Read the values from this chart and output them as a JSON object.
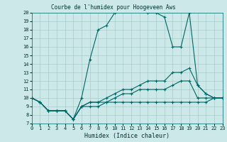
{
  "title": "Courbe de l'humidex pour Hoogeveen Aws",
  "xlabel": "Humidex (Indice chaleur)",
  "bg_color": "#cce8e8",
  "grid_color": "#aacccc",
  "line_color": "#006666",
  "xlim": [
    0,
    23
  ],
  "ylim": [
    7,
    20
  ],
  "lines": [
    {
      "x": [
        0,
        1,
        2,
        3,
        4,
        5,
        6,
        7,
        8,
        9,
        10,
        11,
        12,
        13,
        14,
        15,
        16,
        17,
        18,
        19,
        20,
        21,
        22,
        23
      ],
      "y": [
        10,
        9.5,
        8.5,
        8.5,
        8.5,
        7.5,
        10,
        14.5,
        18,
        18.5,
        20,
        20.5,
        20.5,
        20.5,
        20,
        20,
        19.5,
        16,
        16,
        20,
        11.5,
        10.5,
        10,
        10
      ]
    },
    {
      "x": [
        0,
        1,
        2,
        3,
        4,
        5,
        6,
        7,
        8,
        9,
        10,
        11,
        12,
        13,
        14,
        15,
        16,
        17,
        18,
        19,
        20,
        21,
        22,
        23
      ],
      "y": [
        10,
        9.5,
        8.5,
        8.5,
        8.5,
        7.5,
        9,
        9.5,
        9.5,
        10,
        10.5,
        11,
        11,
        11.5,
        12,
        12,
        12,
        13,
        13,
        13.5,
        11.5,
        10.5,
        10,
        10
      ]
    },
    {
      "x": [
        0,
        1,
        2,
        3,
        4,
        5,
        6,
        7,
        8,
        9,
        10,
        11,
        12,
        13,
        14,
        15,
        16,
        17,
        18,
        19,
        20,
        21,
        22,
        23
      ],
      "y": [
        10,
        9.5,
        8.5,
        8.5,
        8.5,
        7.5,
        9,
        9.5,
        9.5,
        9.5,
        10,
        10.5,
        10.5,
        11,
        11,
        11,
        11,
        11.5,
        12,
        12,
        10,
        10,
        10,
        10
      ]
    },
    {
      "x": [
        0,
        1,
        2,
        3,
        4,
        5,
        6,
        7,
        8,
        9,
        10,
        11,
        12,
        13,
        14,
        15,
        16,
        17,
        18,
        19,
        20,
        21,
        22,
        23
      ],
      "y": [
        10,
        9.5,
        8.5,
        8.5,
        8.5,
        7.5,
        9,
        9,
        9,
        9.5,
        9.5,
        9.5,
        9.5,
        9.5,
        9.5,
        9.5,
        9.5,
        9.5,
        9.5,
        9.5,
        9.5,
        9.5,
        10,
        10
      ]
    }
  ],
  "title_fontsize": 5.5,
  "tick_fontsize": 5,
  "xlabel_fontsize": 6
}
